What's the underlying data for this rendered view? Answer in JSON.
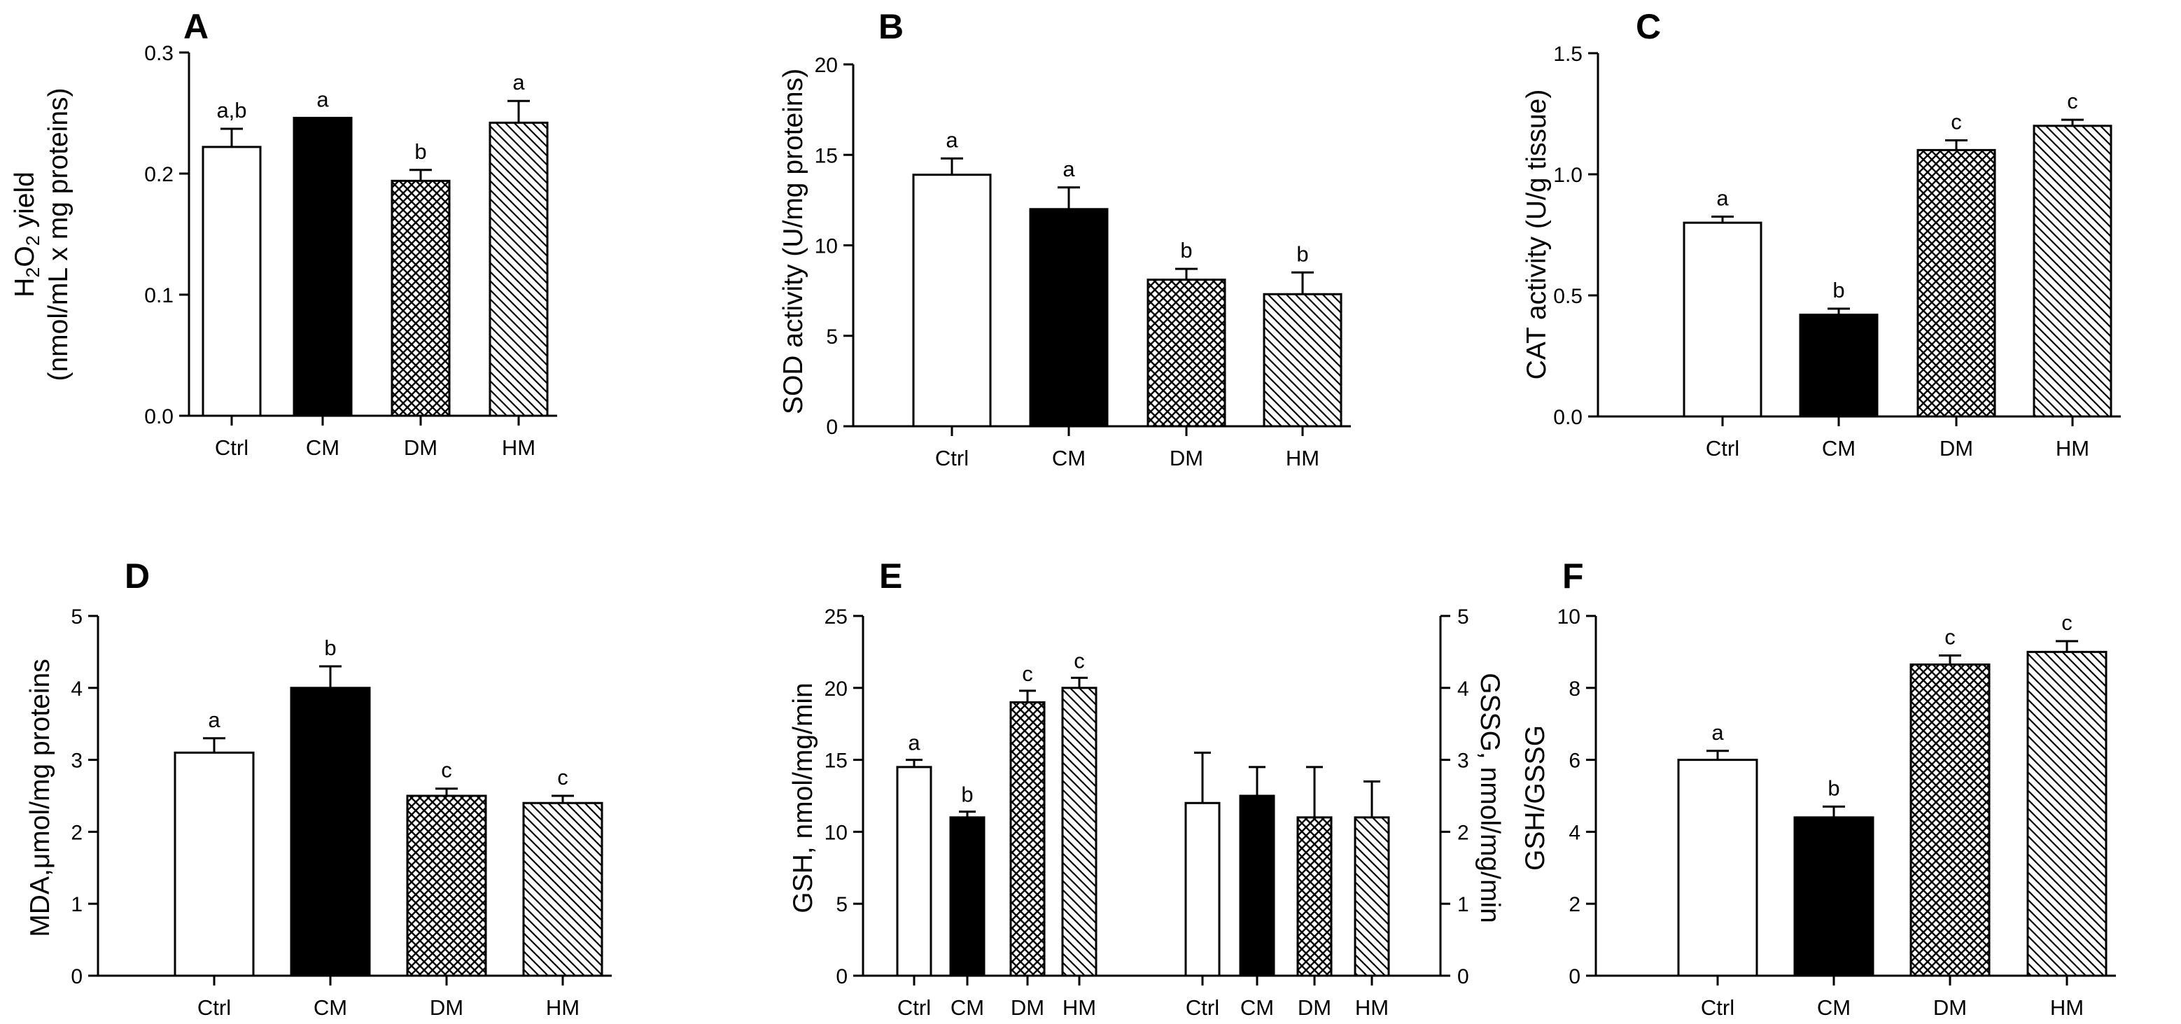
{
  "chart_data": [
    {
      "id": "A",
      "type": "bar",
      "panel_label": "A",
      "categories": [
        "Ctrl",
        "CM",
        "DM",
        "HM"
      ],
      "values": [
        0.222,
        0.246,
        0.194,
        0.242
      ],
      "errors": [
        0.015,
        0.0,
        0.009,
        0.018
      ],
      "significance": [
        "a,b",
        "a",
        "b",
        "a"
      ],
      "ylabel_line1": {
        "pre": "H",
        "sub1": "2",
        "mid": "O",
        "sub2": "2",
        "post": " yield"
      },
      "ylabel_line2": "(nmol/mL x mg proteins)",
      "ylim": [
        0,
        0.3
      ],
      "yticks": [
        "0.0",
        "0.1",
        "0.2",
        "0.3"
      ]
    },
    {
      "id": "B",
      "type": "bar",
      "panel_label": "B",
      "categories": [
        "Ctrl",
        "CM",
        "DM",
        "HM"
      ],
      "values": [
        13.9,
        12.0,
        8.1,
        7.3
      ],
      "errors": [
        0.9,
        1.2,
        0.6,
        1.2
      ],
      "significance": [
        "a",
        "a",
        "b",
        "b"
      ],
      "ylabel": "SOD activity (U/mg proteins)",
      "ylim": [
        0,
        20
      ],
      "yticks": [
        "0",
        "5",
        "10",
        "15",
        "20"
      ]
    },
    {
      "id": "C",
      "type": "bar",
      "panel_label": "C",
      "categories": [
        "Ctrl",
        "CM",
        "DM",
        "HM"
      ],
      "values": [
        0.8,
        0.42,
        1.1,
        1.2
      ],
      "errors": [
        0.025,
        0.025,
        0.04,
        0.025
      ],
      "significance": [
        "a",
        "b",
        "c",
        "c"
      ],
      "ylabel": "CAT activity (U/g tissue)",
      "ylim": [
        0,
        1.5
      ],
      "yticks": [
        "0.0",
        "0.5",
        "1.0",
        "1.5"
      ]
    },
    {
      "id": "D",
      "type": "bar",
      "panel_label": "D",
      "categories": [
        "Ctrl",
        "CM",
        "DM",
        "HM"
      ],
      "values": [
        3.1,
        4.0,
        2.5,
        2.4
      ],
      "errors": [
        0.2,
        0.3,
        0.1,
        0.1
      ],
      "significance": [
        "a",
        "b",
        "c",
        "c"
      ],
      "ylabel": "MDA,μmol/mg proteins",
      "ylim": [
        0,
        5
      ],
      "yticks": [
        "0",
        "1",
        "2",
        "3",
        "4",
        "5"
      ]
    },
    {
      "id": "E",
      "type": "bar",
      "panel_label": "E",
      "categories": [
        "Ctrl",
        "CM",
        "DM",
        "HM"
      ],
      "series": [
        {
          "name": "GSH",
          "axis": "left",
          "values": [
            14.5,
            11.0,
            19.0,
            20.0
          ],
          "errors": [
            0.5,
            0.4,
            0.8,
            0.7
          ],
          "significance": [
            "a",
            "b",
            "c",
            "c"
          ]
        },
        {
          "name": "GSSG",
          "axis": "right",
          "values": [
            2.4,
            2.5,
            2.2,
            2.2
          ],
          "errors": [
            0.7,
            0.4,
            0.7,
            0.5
          ],
          "significance": [
            "",
            "",
            "",
            ""
          ]
        }
      ],
      "ylabel": "GSH, nmol/mg/min",
      "ylabel_right": "GSSG, nmol/mg/min",
      "ylim": [
        0,
        25
      ],
      "ylim_right": [
        0,
        5
      ],
      "yticks": [
        "0",
        "5",
        "10",
        "15",
        "20",
        "25"
      ],
      "yticks_right": [
        "0",
        "1",
        "2",
        "3",
        "4",
        "5"
      ]
    },
    {
      "id": "F",
      "type": "bar",
      "panel_label": "F",
      "categories": [
        "Ctrl",
        "CM",
        "DM",
        "HM"
      ],
      "values": [
        6.0,
        4.4,
        8.65,
        9.0
      ],
      "errors": [
        0.25,
        0.3,
        0.25,
        0.3
      ],
      "significance": [
        "a",
        "b",
        "c",
        "c"
      ],
      "ylabel": "GSH/GSSG",
      "ylim": [
        0,
        10
      ],
      "yticks": [
        "0",
        "2",
        "4",
        "6",
        "8",
        "10"
      ]
    }
  ],
  "bar_styles": [
    "open",
    "solid",
    "checker",
    "diagonal"
  ]
}
